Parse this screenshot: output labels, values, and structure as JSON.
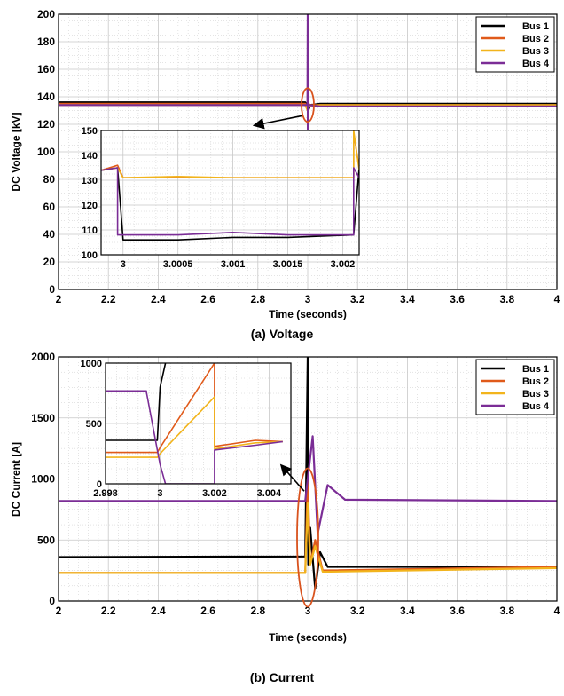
{
  "colors": {
    "bus1": "#000000",
    "bus2": "#e05a1a",
    "bus3": "#f2b41c",
    "bus4": "#7b2d96",
    "grid": "#c8c8c8",
    "annotation": "#d9531e"
  },
  "chart_data": [
    {
      "id": "voltage-main",
      "type": "line",
      "caption": "(a) Voltage",
      "xlabel": "Time (seconds)",
      "ylabel": "DC Voltage [kV]",
      "xlim": [
        2,
        4
      ],
      "ylim": [
        0,
        200
      ],
      "xticks": [
        2,
        2.2,
        2.4,
        2.6,
        2.8,
        3,
        3.2,
        3.4,
        3.6,
        3.8,
        4
      ],
      "yticks": [
        0,
        20,
        40,
        60,
        80,
        100,
        120,
        140,
        160,
        180,
        200
      ],
      "grid": true,
      "legend_position": "top-right",
      "series": [
        {
          "name": "Bus 1",
          "color_key": "bus1",
          "x": [
            2,
            2.99,
            3,
            3.002,
            3.01,
            3.05,
            4
          ],
          "y": [
            136,
            136,
            133,
            130,
            134,
            135,
            135
          ]
        },
        {
          "name": "Bus 2",
          "color_key": "bus2",
          "x": [
            2,
            2.99,
            3,
            3.002,
            3.01,
            3.05,
            4
          ],
          "y": [
            135,
            135,
            130,
            135,
            134,
            134,
            134
          ]
        },
        {
          "name": "Bus 3",
          "color_key": "bus3",
          "x": [
            2,
            2.99,
            3,
            3.002,
            3.01,
            3.05,
            4
          ],
          "y": [
            134,
            134,
            130,
            134,
            133,
            134,
            134
          ]
        },
        {
          "name": "Bus 4",
          "color_key": "bus4",
          "x": [
            2,
            2.999,
            3,
            3.0005,
            3.002,
            3.003,
            3.05,
            4
          ],
          "y": [
            134,
            134,
            200,
            110,
            150,
            134,
            133,
            133
          ]
        }
      ],
      "annotation": "ellipse at t = 3 s pointing to inset"
    },
    {
      "id": "voltage-inset",
      "type": "line",
      "xlim": [
        2.9998,
        3.00215
      ],
      "ylim": [
        100,
        150
      ],
      "xticks": [
        3,
        3.0005,
        3.001,
        3.0015,
        3.002
      ],
      "xtick_labels": [
        "3",
        "3.0005",
        "3.001",
        "3.0015",
        "3.002"
      ],
      "yticks": [
        100,
        110,
        120,
        130,
        140,
        150
      ],
      "grid": true,
      "series": [
        {
          "name": "Bus 1",
          "color_key": "bus1",
          "x": [
            2.9998,
            2.99995,
            3.0,
            3.0001,
            3.0005,
            3.001,
            3.0015,
            3.0021,
            3.00215
          ],
          "y": [
            134,
            135,
            106,
            106,
            106,
            107,
            107,
            108,
            135
          ]
        },
        {
          "name": "Bus 2",
          "color_key": "bus2",
          "x": [
            2.9998,
            2.99995,
            3.0,
            3.0005,
            3.001,
            3.0015,
            3.0021,
            3.0021,
            3.00215
          ],
          "y": [
            134,
            136,
            131,
            131,
            131,
            131,
            131,
            149,
            135
          ]
        },
        {
          "name": "Bus 3",
          "color_key": "bus3",
          "x": [
            2.9998,
            2.99995,
            3.0,
            3.0005,
            3.001,
            3.0015,
            3.0021,
            3.0021,
            3.00215
          ],
          "y": [
            134,
            135,
            131,
            131.5,
            131,
            131,
            131,
            150,
            134
          ]
        },
        {
          "name": "Bus 4",
          "color_key": "bus4",
          "x": [
            2.9998,
            2.99995,
            2.99995,
            3.0005,
            3.001,
            3.0015,
            3.0021,
            3.0021,
            3.00215
          ],
          "y": [
            134,
            135,
            108,
            108,
            109,
            108,
            108,
            135,
            131
          ]
        }
      ]
    },
    {
      "id": "current-main",
      "type": "line",
      "caption": "(b) Current",
      "xlabel": "Time (seconds)",
      "ylabel": "DC Current [A]",
      "xlim": [
        2,
        4
      ],
      "ylim": [
        0,
        2000
      ],
      "xticks": [
        2,
        2.2,
        2.4,
        2.6,
        2.8,
        3,
        3.2,
        3.4,
        3.6,
        3.8,
        4
      ],
      "yticks": [
        0,
        500,
        1000,
        1500,
        2000
      ],
      "grid": true,
      "legend_position": "top-right",
      "series": [
        {
          "name": "Bus 1",
          "color_key": "bus1",
          "x": [
            2,
            2.99,
            3.0,
            3.002,
            3.01,
            3.03,
            3.05,
            3.08,
            4
          ],
          "y": [
            360,
            365,
            2000,
            300,
            600,
            100,
            400,
            280,
            280
          ]
        },
        {
          "name": "Bus 2",
          "color_key": "bus2",
          "x": [
            2,
            2.99,
            3.0,
            3.01,
            3.03,
            3.06,
            4
          ],
          "y": [
            230,
            230,
            1000,
            300,
            500,
            250,
            280
          ]
        },
        {
          "name": "Bus 3",
          "color_key": "bus3",
          "x": [
            2,
            2.99,
            3.0,
            3.01,
            3.03,
            3.06,
            4
          ],
          "y": [
            230,
            230,
            800,
            300,
            450,
            240,
            270
          ]
        },
        {
          "name": "Bus 4",
          "color_key": "bus4",
          "x": [
            2,
            2.99,
            3.0,
            3.02,
            3.04,
            3.08,
            3.15,
            4
          ],
          "y": [
            820,
            820,
            1000,
            1350,
            550,
            950,
            830,
            820
          ]
        }
      ],
      "annotation": "ellipse at t = 3 s pointing to inset"
    },
    {
      "id": "current-inset",
      "type": "line",
      "xlim": [
        2.998,
        3.0048
      ],
      "ylim": [
        0,
        1000
      ],
      "xticks": [
        2.998,
        3,
        3.002,
        3.004
      ],
      "xtick_labels": [
        "2.998",
        "3",
        "3.002",
        "3.004"
      ],
      "yticks": [
        0,
        500,
        1000
      ],
      "grid": true,
      "series": [
        {
          "name": "Bus 1",
          "color_key": "bus1",
          "x": [
            2.998,
            2.9999,
            3.0,
            3.0002
          ],
          "y": [
            360,
            360,
            800,
            1000
          ]
        },
        {
          "name": "Bus 2",
          "color_key": "bus2",
          "x": [
            2.998,
            2.9999,
            3.0,
            3.002,
            3.002,
            3.0035,
            3.0045
          ],
          "y": [
            260,
            260,
            300,
            1000,
            310,
            360,
            350
          ]
        },
        {
          "name": "Bus 3",
          "color_key": "bus3",
          "x": [
            2.998,
            2.9999,
            3.0,
            3.002,
            3.002,
            3.0035,
            3.0045
          ],
          "y": [
            220,
            220,
            250,
            720,
            290,
            340,
            350
          ]
        },
        {
          "name": "Bus 4",
          "color_key": "bus4",
          "x": [
            2.998,
            2.9995,
            2.9995,
            3.0,
            3.0002,
            3.002,
            3.002,
            3.0035,
            3.0045
          ],
          "y": [
            770,
            770,
            760,
            160,
            0,
            0,
            280,
            320,
            350
          ]
        }
      ]
    }
  ]
}
